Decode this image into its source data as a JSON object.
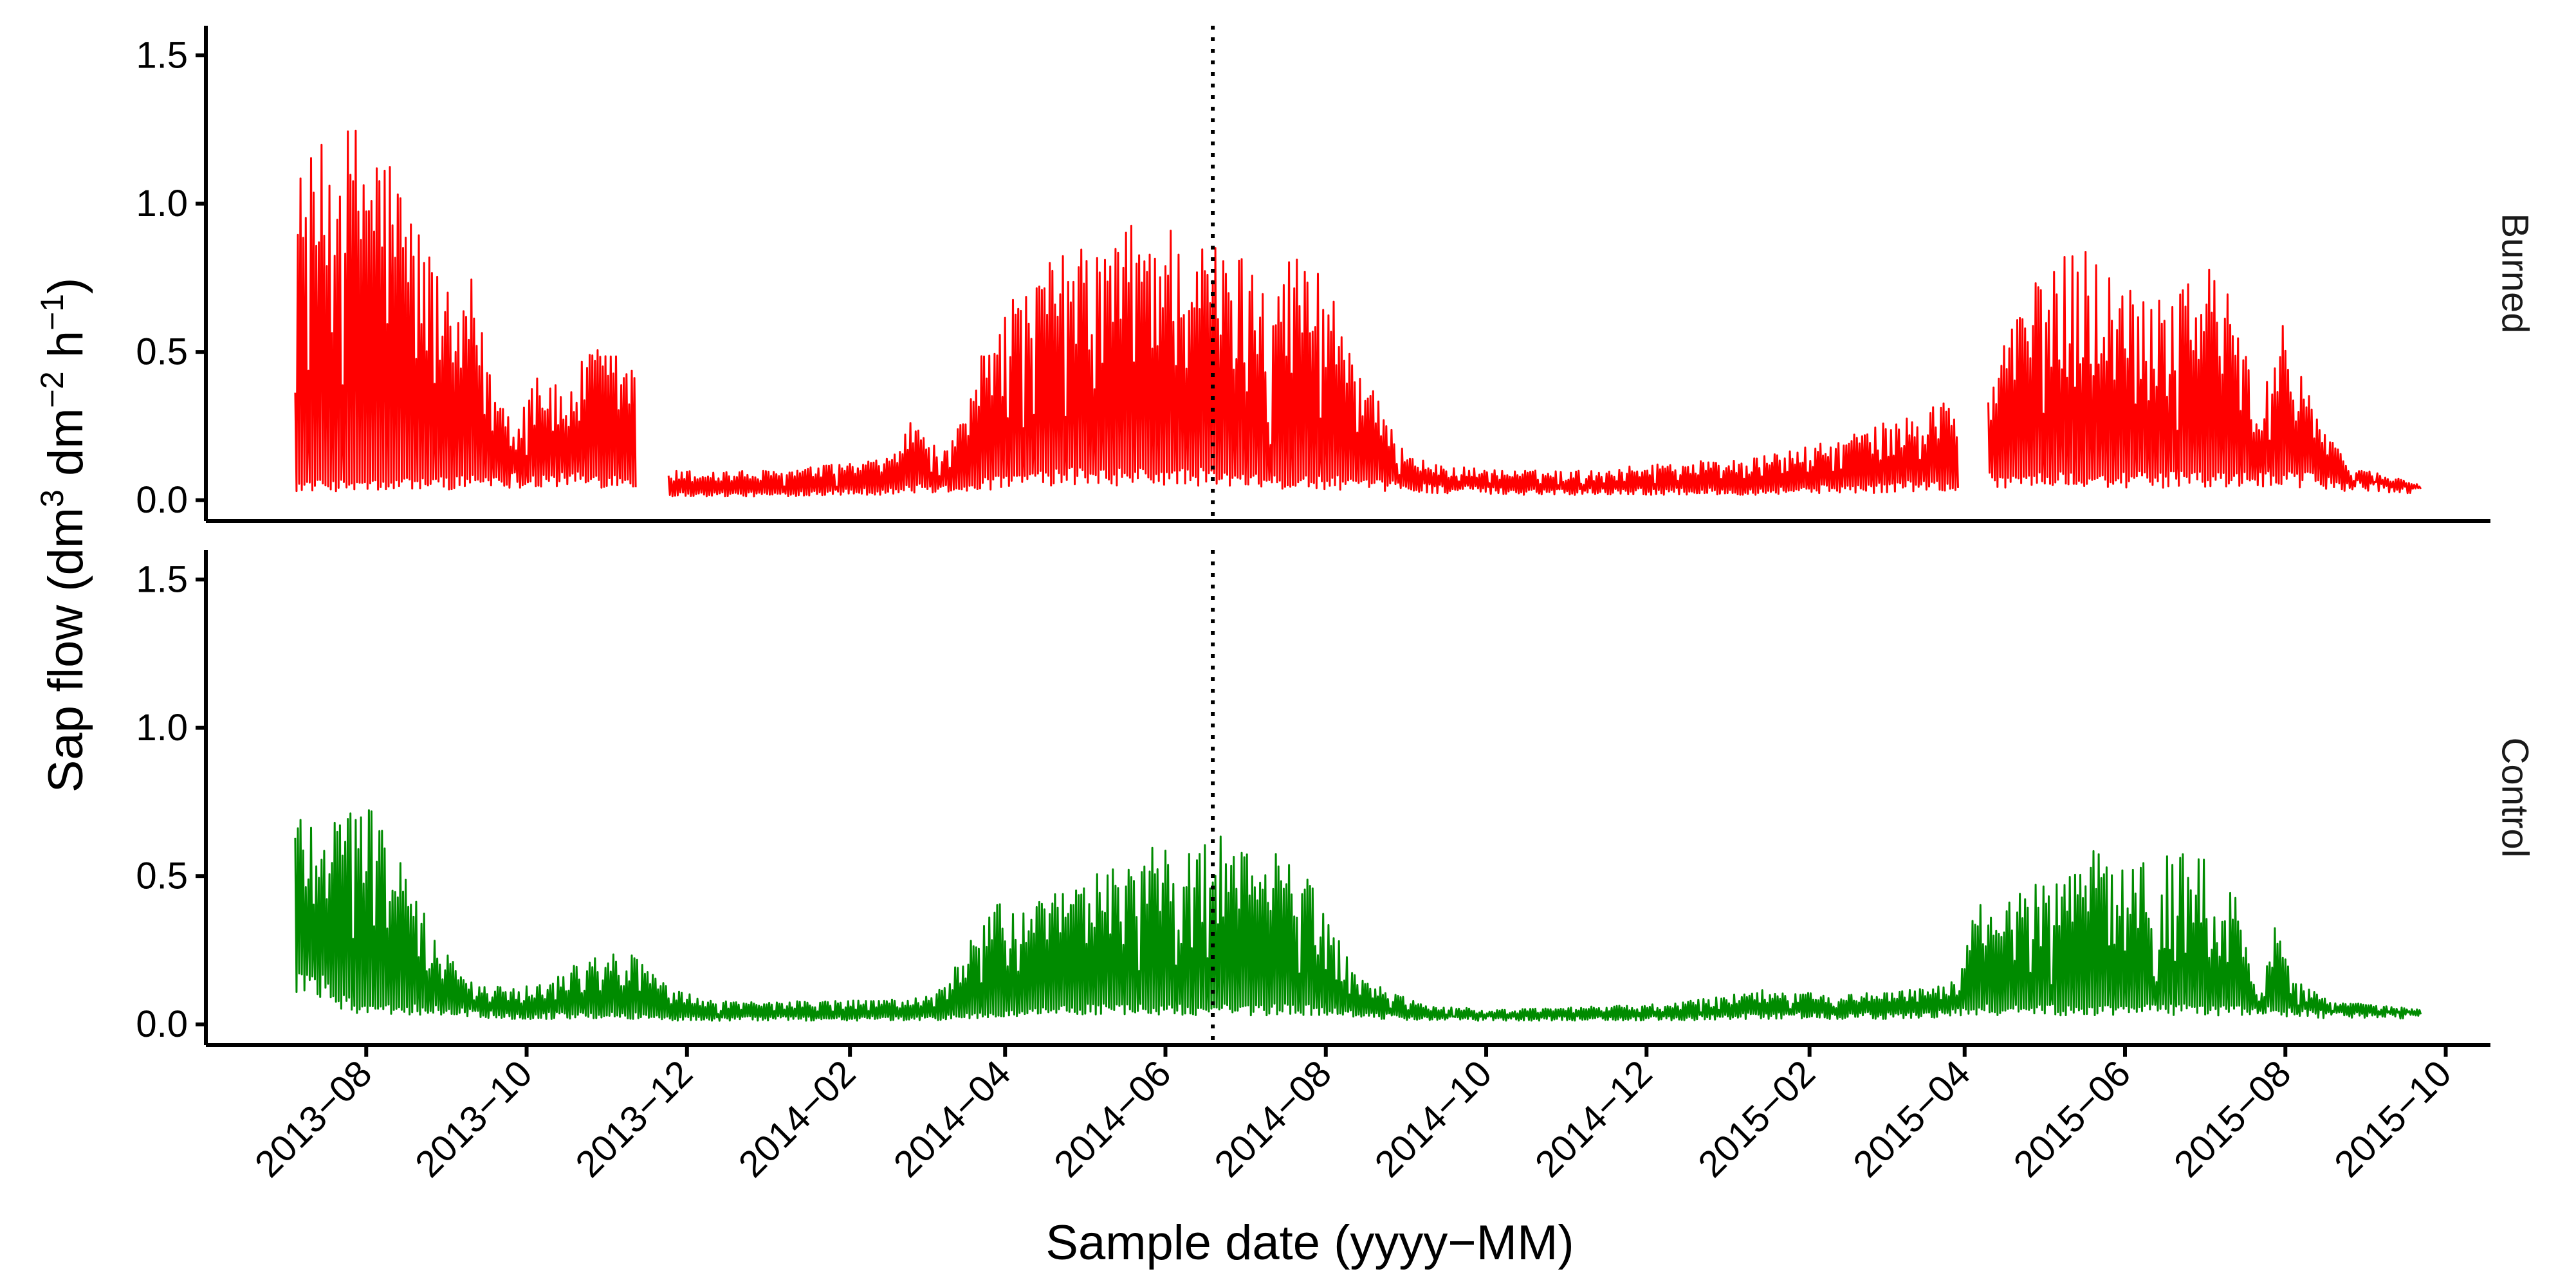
{
  "chart_data": {
    "type": "line",
    "xlabel": "Sample date (yyyy−MM)",
    "ylabel": "Sap flow (dm³ dm⁻² h⁻¹)",
    "ylabel_parts": {
      "prefix": "Sap flow (dm",
      "sup1": "3",
      "mid": " dm",
      "sup2": "−2",
      "mid2": " h",
      "sup3": "−1",
      "suffix": ")"
    },
    "x_range": [
      "2013-06-01",
      "2015-10-18"
    ],
    "x_ticks": [
      "2013−08",
      "2013−10",
      "2013−12",
      "2014−02",
      "2014−04",
      "2014−06",
      "2014−08",
      "2014−10",
      "2014−12",
      "2015−02",
      "2015−04",
      "2015−06",
      "2015−08",
      "2015−10"
    ],
    "x_tick_dates": [
      "2013-08-01",
      "2013-10-01",
      "2013-12-01",
      "2014-02-01",
      "2014-04-01",
      "2014-06-01",
      "2014-08-01",
      "2014-10-01",
      "2014-12-01",
      "2015-02-01",
      "2015-04-01",
      "2015-06-01",
      "2015-08-01",
      "2015-10-01"
    ],
    "y_range": [
      -0.07,
      1.6
    ],
    "y_ticks": [
      "0.0",
      "0.5",
      "1.0",
      "1.5"
    ],
    "y_tick_values": [
      0,
      0.5,
      1.0,
      1.5
    ],
    "reference_line": {
      "date": "2014-06-19",
      "style": "dotted"
    },
    "panels": [
      {
        "name": "Burned",
        "color": "#ff0000",
        "envelope": [
          [
            "2013-07-05",
            0.05,
            1.1
          ],
          [
            "2013-07-12",
            0.05,
            1.18
          ],
          [
            "2013-07-22",
            0.05,
            1.25
          ],
          [
            "2013-08-01",
            0.05,
            1.3
          ],
          [
            "2013-08-10",
            0.05,
            1.18
          ],
          [
            "2013-08-20",
            0.06,
            0.95
          ],
          [
            "2013-08-28",
            0.06,
            0.8
          ],
          [
            "2013-09-05",
            0.06,
            0.6
          ],
          [
            "2013-09-10",
            0.07,
            0.75
          ],
          [
            "2013-09-18",
            0.07,
            0.4
          ],
          [
            "2013-09-28",
            0.07,
            0.28
          ],
          [
            "2013-10-05",
            0.07,
            0.48
          ],
          [
            "2013-10-15",
            0.07,
            0.35
          ],
          [
            "2013-10-25",
            0.07,
            0.52
          ],
          [
            "2013-11-05",
            0.07,
            0.5
          ],
          [
            "2013-11-12",
            0.06,
            0.45
          ],
          [
            "2013-11-18",
            null,
            null
          ],
          [
            "2013-11-24",
            0.02,
            0.1
          ],
          [
            "2013-12-15",
            0.02,
            0.1
          ],
          [
            "2014-01-05",
            0.02,
            0.1
          ],
          [
            "2014-01-25",
            0.03,
            0.12
          ],
          [
            "2014-02-15",
            0.03,
            0.14
          ],
          [
            "2014-02-25",
            0.04,
            0.28
          ],
          [
            "2014-03-08",
            0.04,
            0.15
          ],
          [
            "2014-03-18",
            0.05,
            0.3
          ],
          [
            "2014-03-28",
            0.06,
            0.72
          ],
          [
            "2014-04-08",
            0.07,
            0.7
          ],
          [
            "2014-04-22",
            0.08,
            0.85
          ],
          [
            "2014-05-05",
            0.08,
            0.85
          ],
          [
            "2014-05-20",
            0.08,
            0.95
          ],
          [
            "2014-06-01",
            0.08,
            0.95
          ],
          [
            "2014-06-15",
            0.08,
            0.88
          ],
          [
            "2014-06-25",
            0.07,
            0.85
          ],
          [
            "2014-07-10",
            0.06,
            0.82
          ],
          [
            "2014-07-25",
            0.06,
            0.85
          ],
          [
            "2014-08-05",
            0.06,
            0.7
          ],
          [
            "2014-08-15",
            0.05,
            0.45
          ],
          [
            "2014-08-28",
            0.05,
            0.2
          ],
          [
            "2014-09-10",
            0.04,
            0.12
          ],
          [
            "2014-10-10",
            0.03,
            0.1
          ],
          [
            "2014-11-10",
            0.03,
            0.1
          ],
          [
            "2014-12-10",
            0.03,
            0.13
          ],
          [
            "2015-01-10",
            0.03,
            0.14
          ],
          [
            "2015-02-10",
            0.04,
            0.2
          ],
          [
            "2015-02-25",
            0.04,
            0.25
          ],
          [
            "2015-03-10",
            0.05,
            0.28
          ],
          [
            "2015-03-25",
            0.05,
            0.35
          ],
          [
            "2015-03-30",
            0.04,
            0.3
          ],
          [
            "2015-04-04",
            null,
            null
          ],
          [
            "2015-04-10",
            0.07,
            0.38
          ],
          [
            "2015-04-22",
            0.07,
            0.7
          ],
          [
            "2015-05-05",
            0.07,
            0.78
          ],
          [
            "2015-05-15",
            0.07,
            0.9
          ],
          [
            "2015-05-28",
            0.07,
            0.75
          ],
          [
            "2015-06-10",
            0.07,
            0.72
          ],
          [
            "2015-06-22",
            0.07,
            0.78
          ],
          [
            "2015-07-05",
            0.07,
            0.8
          ],
          [
            "2015-07-15",
            0.07,
            0.6
          ],
          [
            "2015-07-22",
            0.07,
            0.25
          ],
          [
            "2015-07-30",
            0.07,
            0.65
          ],
          [
            "2015-08-08",
            0.07,
            0.45
          ],
          [
            "2015-08-15",
            0.06,
            0.25
          ],
          [
            "2015-08-25",
            0.05,
            0.12
          ],
          [
            "2015-09-10",
            0.04,
            0.08
          ],
          [
            "2015-09-22",
            0.03,
            0.06
          ]
        ]
      },
      {
        "name": "Control",
        "color": "#008b00",
        "envelope": [
          [
            "2013-07-05",
            0.15,
            0.75
          ],
          [
            "2013-07-15",
            0.12,
            0.72
          ],
          [
            "2013-07-28",
            0.05,
            0.78
          ],
          [
            "2013-08-08",
            0.05,
            0.72
          ],
          [
            "2013-08-18",
            0.05,
            0.45
          ],
          [
            "2013-08-28",
            0.05,
            0.3
          ],
          [
            "2013-09-08",
            0.04,
            0.15
          ],
          [
            "2013-09-25",
            0.03,
            0.12
          ],
          [
            "2013-10-10",
            0.03,
            0.15
          ],
          [
            "2013-10-25",
            0.03,
            0.25
          ],
          [
            "2013-11-10",
            0.03,
            0.24
          ],
          [
            "2013-11-25",
            0.02,
            0.12
          ],
          [
            "2013-12-10",
            0.02,
            0.08
          ],
          [
            "2014-01-10",
            0.02,
            0.08
          ],
          [
            "2014-02-10",
            0.02,
            0.08
          ],
          [
            "2014-03-05",
            0.02,
            0.1
          ],
          [
            "2014-03-15",
            0.03,
            0.22
          ],
          [
            "2014-03-25",
            0.03,
            0.4
          ],
          [
            "2014-04-10",
            0.04,
            0.42
          ],
          [
            "2014-04-25",
            0.05,
            0.45
          ],
          [
            "2014-05-10",
            0.05,
            0.55
          ],
          [
            "2014-05-25",
            0.05,
            0.6
          ],
          [
            "2014-06-10",
            0.05,
            0.58
          ],
          [
            "2014-06-25",
            0.05,
            0.65
          ],
          [
            "2014-07-10",
            0.05,
            0.6
          ],
          [
            "2014-07-25",
            0.05,
            0.5
          ],
          [
            "2014-08-05",
            0.04,
            0.3
          ],
          [
            "2014-08-15",
            0.03,
            0.15
          ],
          [
            "2014-09-10",
            0.02,
            0.06
          ],
          [
            "2014-10-10",
            0.02,
            0.05
          ],
          [
            "2014-11-10",
            0.02,
            0.06
          ],
          [
            "2014-12-10",
            0.02,
            0.07
          ],
          [
            "2015-01-15",
            0.03,
            0.12
          ],
          [
            "2015-02-15",
            0.03,
            0.1
          ],
          [
            "2015-03-15",
            0.03,
            0.12
          ],
          [
            "2015-03-30",
            0.04,
            0.15
          ],
          [
            "2015-04-05",
            0.05,
            0.4
          ],
          [
            "2015-04-20",
            0.05,
            0.45
          ],
          [
            "2015-05-05",
            0.05,
            0.5
          ],
          [
            "2015-05-20",
            0.05,
            0.6
          ],
          [
            "2015-06-05",
            0.05,
            0.55
          ],
          [
            "2015-06-20",
            0.05,
            0.58
          ],
          [
            "2015-07-05",
            0.05,
            0.55
          ],
          [
            "2015-07-15",
            0.05,
            0.4
          ],
          [
            "2015-07-22",
            0.04,
            0.08
          ],
          [
            "2015-07-28",
            0.05,
            0.35
          ],
          [
            "2015-08-05",
            0.04,
            0.15
          ],
          [
            "2015-08-20",
            0.03,
            0.08
          ],
          [
            "2015-09-22",
            0.03,
            0.05
          ]
        ]
      }
    ]
  }
}
